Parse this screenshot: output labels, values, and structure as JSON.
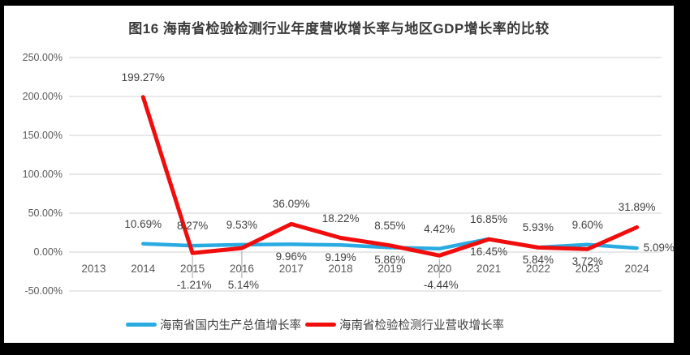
{
  "title": "图16 海南省检验检测行业年度营收增长率与地区GDP增长率的比较",
  "chart_data": {
    "type": "line",
    "title": "图16 海南省检验检测行业年度营收增长率与地区GDP增长率的比较",
    "categories": [
      "2013",
      "2014",
      "2015",
      "2016",
      "2017",
      "2018",
      "2019",
      "2020",
      "2021",
      "2022",
      "2023",
      "2024"
    ],
    "xlabel": "",
    "ylabel": "",
    "ylim": [
      -50,
      250
    ],
    "grid": true,
    "legend_position": "bottom",
    "y_ticks": [
      {
        "value": 250,
        "label": "250.00%"
      },
      {
        "value": 200,
        "label": "200.00%"
      },
      {
        "value": 150,
        "label": "150.00%"
      },
      {
        "value": 100,
        "label": "100.00%"
      },
      {
        "value": 50,
        "label": "50.00%"
      },
      {
        "value": 0,
        "label": "0.00%"
      },
      {
        "value": -50,
        "label": "-50.00%"
      }
    ],
    "series": [
      {
        "name": "海南省国内生产总值增长率",
        "color": "#29abe2",
        "stroke_width": 4.5,
        "values": [
          null,
          10.69,
          8.27,
          9.53,
          9.96,
          9.19,
          5.86,
          4.42,
          16.85,
          5.93,
          9.6,
          5.09
        ],
        "labels": [
          null,
          "10.69%",
          "8.27%",
          "9.53%",
          "9.96%",
          "9.19%",
          "5.86%",
          "4.42%",
          "16.85%",
          "5.93%",
          "9.60%",
          "5.09%"
        ],
        "label_pos": [
          null,
          "above",
          "above",
          "above",
          "below",
          "below",
          "below",
          "above",
          "above",
          "above",
          "above",
          "right"
        ]
      },
      {
        "name": "海南省检验检测行业营收增长率",
        "color": "#f20d0d",
        "stroke_width": 5,
        "values": [
          null,
          199.27,
          -1.21,
          5.14,
          36.09,
          18.22,
          8.55,
          -4.44,
          16.45,
          5.84,
          3.72,
          31.89
        ],
        "labels": [
          null,
          "199.27%",
          "-1.21%",
          "5.14%",
          "36.09%",
          "18.22%",
          "8.55%",
          "-4.44%",
          "16.45%",
          "5.84%",
          "3.72%",
          "31.89%"
        ],
        "label_pos": [
          null,
          "above",
          "axis",
          "axis",
          "above",
          "above",
          "above",
          "axis",
          "below",
          "below",
          "below",
          "above"
        ]
      }
    ],
    "colors": {
      "grid": "#d9d9d9",
      "axis_text": "#595959",
      "label_text": "#3f3f3f",
      "leader": "#a6a6a6",
      "frame": "#000000",
      "background": "#ffffff"
    }
  }
}
